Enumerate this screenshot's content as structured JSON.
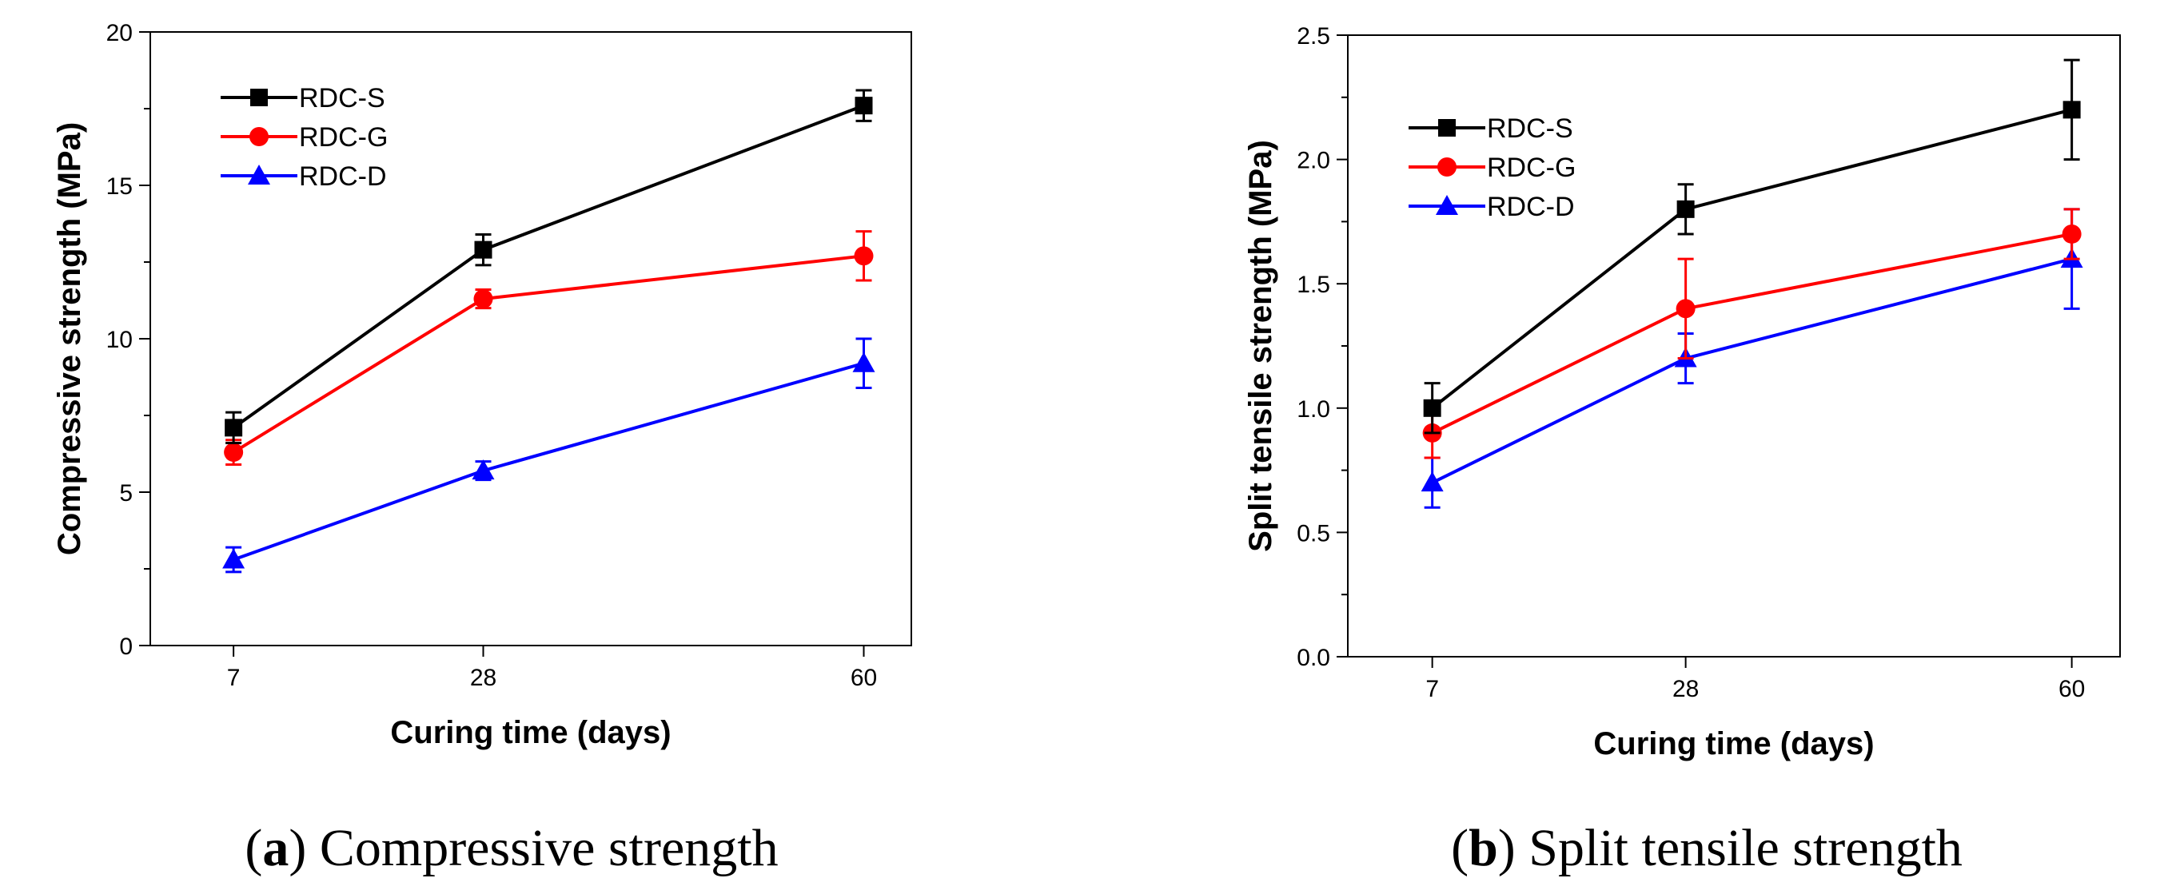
{
  "chart_data": [
    {
      "type": "line",
      "panel": "a",
      "caption_letter": "a",
      "caption_text": "Compressive strength",
      "title": "",
      "xlabel": "Curing time (days)",
      "ylabel": "Compressive strength (MPa)",
      "x": [
        7,
        28,
        60
      ],
      "x_tick_labels": [
        "7",
        "28",
        "60"
      ],
      "ylim": [
        0,
        20
      ],
      "y_ticks": [
        0,
        5,
        10,
        15,
        20
      ],
      "y_tick_labels": [
        "0",
        "5",
        "10",
        "15",
        "20"
      ],
      "y_minor_step": 2.5,
      "grid": false,
      "legend_position": "top-left",
      "series": [
        {
          "name": "RDC-S",
          "color": "#000000",
          "marker": "square",
          "values": [
            7.1,
            12.9,
            17.6
          ],
          "errors": [
            0.5,
            0.5,
            0.5
          ]
        },
        {
          "name": "RDC-G",
          "color": "#ff0000",
          "marker": "circle",
          "values": [
            6.3,
            11.3,
            12.7
          ],
          "errors": [
            0.4,
            0.3,
            0.8
          ]
        },
        {
          "name": "RDC-D",
          "color": "#0000ff",
          "marker": "triangle",
          "values": [
            2.8,
            5.7,
            9.2
          ],
          "errors": [
            0.4,
            0.3,
            0.8
          ]
        }
      ]
    },
    {
      "type": "line",
      "panel": "b",
      "caption_letter": "b",
      "caption_text": "Split tensile strength",
      "title": "",
      "xlabel": "Curing time (days)",
      "ylabel": "Split tensile strength (MPa)",
      "x": [
        7,
        28,
        60
      ],
      "x_tick_labels": [
        "7",
        "28",
        "60"
      ],
      "ylim": [
        0,
        2.5
      ],
      "y_ticks": [
        0,
        0.5,
        1.0,
        1.5,
        2.0,
        2.5
      ],
      "y_tick_labels": [
        "0.0",
        "0.5",
        "1.0",
        "1.5",
        "2.0",
        "2.5"
      ],
      "y_minor_step": 0.25,
      "grid": false,
      "legend_position": "top-left",
      "series": [
        {
          "name": "RDC-S",
          "color": "#000000",
          "marker": "square",
          "values": [
            1.0,
            1.8,
            2.2
          ],
          "errors": [
            0.1,
            0.1,
            0.2
          ]
        },
        {
          "name": "RDC-G",
          "color": "#ff0000",
          "marker": "circle",
          "values": [
            0.9,
            1.4,
            1.7
          ],
          "errors": [
            0.1,
            0.2,
            0.1
          ]
        },
        {
          "name": "RDC-D",
          "color": "#0000ff",
          "marker": "triangle",
          "values": [
            0.7,
            1.2,
            1.6
          ],
          "errors": [
            0.1,
            0.1,
            0.2
          ]
        }
      ]
    }
  ]
}
